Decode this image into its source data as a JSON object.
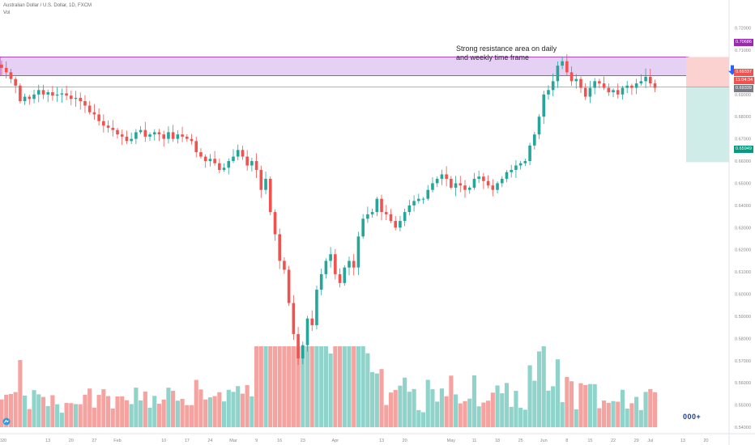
{
  "header": {
    "symbol_line": "Australian Dollar / U.S. Dollar, 1D, FXCM",
    "indicator_line": "Vol"
  },
  "annotation": {
    "line1": "Strong resistance area on daily",
    "line2": "and weekly time frame"
  },
  "price_tags": {
    "top": "0.70686",
    "current": "0.69337",
    "countdown": "11:04:34",
    "entry": "0.69339",
    "target": "0.65949"
  },
  "colors": {
    "up": "#26a69a",
    "down": "#ef5350",
    "up_volume": "#8fd3cb",
    "down_volume": "#f5a3a0",
    "resistance_zone": "#e1c9f2",
    "risk_zone": "#fbd2d0",
    "reward_zone": "#cfece9",
    "target_tag": "#089981",
    "arrow": "#2962ff"
  },
  "icons": {
    "logo": "tradingview-logo-icon",
    "arrow": "arrow-down-icon",
    "controls": "chart-controls-icon"
  },
  "controls_label": "000+",
  "chart_data": {
    "type": "candlestick",
    "title": "Australian Dollar / U.S. Dollar, 1D, FXCM",
    "y_axis": {
      "range": [
        0.5371,
        0.7326
      ],
      "ticks": [
        "0.72000",
        "0.71000",
        "0.70000",
        "0.69000",
        "0.68000",
        "0.67000",
        "0.66000",
        "0.65000",
        "0.64000",
        "0.63000",
        "0.62000",
        "0.61000",
        "0.60000",
        "0.59000",
        "0.58000",
        "0.57000",
        "0.56000",
        "0.55000",
        "0.54000"
      ],
      "position": "right"
    },
    "x_axis": {
      "ticks": [
        {
          "label": "2020",
          "index": 0
        },
        {
          "label": "13",
          "index": 10
        },
        {
          "label": "20",
          "index": 15
        },
        {
          "label": "27",
          "index": 20
        },
        {
          "label": "Feb",
          "index": 25
        },
        {
          "label": "10",
          "index": 35
        },
        {
          "label": "17",
          "index": 40
        },
        {
          "label": "24",
          "index": 45
        },
        {
          "label": "Mar",
          "index": 50
        },
        {
          "label": "9",
          "index": 55
        },
        {
          "label": "16",
          "index": 60
        },
        {
          "label": "23",
          "index": 65
        },
        {
          "label": "Apr",
          "index": 72
        },
        {
          "label": "13",
          "index": 82
        },
        {
          "label": "20",
          "index": 87
        },
        {
          "label": "May",
          "index": 97
        },
        {
          "label": "11",
          "index": 102
        },
        {
          "label": "18",
          "index": 107
        },
        {
          "label": "25",
          "index": 112
        },
        {
          "label": "Jun",
          "index": 117
        },
        {
          "label": "8",
          "index": 122
        },
        {
          "label": "15",
          "index": 127
        },
        {
          "label": "22",
          "index": 132
        },
        {
          "label": "29",
          "index": 137
        },
        {
          "label": "Jul",
          "index": 140
        },
        {
          "label": "13",
          "index": 147
        },
        {
          "label": "20",
          "index": 152
        }
      ],
      "bar_count": 160
    },
    "resistance_zone": {
      "from": 0.6985,
      "to": 0.7069,
      "label": "Strong resistance area on daily and weekly time frame"
    },
    "horizontal_line": 0.6934,
    "position_tool": {
      "entry": 0.6934,
      "stop": 0.7069,
      "target": 0.6595
    },
    "closes": [
      0.702,
      0.7,
      0.697,
      0.694,
      0.687,
      0.689,
      0.688,
      0.69,
      0.692,
      0.69,
      0.691,
      0.6895,
      0.69,
      0.6905,
      0.6895,
      0.688,
      0.6885,
      0.687,
      0.685,
      0.682,
      0.681,
      0.678,
      0.676,
      0.675,
      0.674,
      0.672,
      0.671,
      0.669,
      0.67,
      0.673,
      0.674,
      0.671,
      0.672,
      0.673,
      0.672,
      0.67,
      0.673,
      0.67,
      0.672,
      0.671,
      0.67,
      0.669,
      0.664,
      0.662,
      0.66,
      0.661,
      0.659,
      0.656,
      0.657,
      0.66,
      0.662,
      0.665,
      0.662,
      0.658,
      0.66,
      0.656,
      0.647,
      0.652,
      0.637,
      0.627,
      0.615,
      0.611,
      0.596,
      0.582,
      0.571,
      0.577,
      0.589,
      0.586,
      0.602,
      0.609,
      0.615,
      0.618,
      0.609,
      0.605,
      0.612,
      0.615,
      0.612,
      0.626,
      0.634,
      0.636,
      0.637,
      0.643,
      0.637,
      0.636,
      0.633,
      0.63,
      0.633,
      0.637,
      0.64,
      0.642,
      0.643,
      0.643,
      0.647,
      0.65,
      0.652,
      0.654,
      0.652,
      0.648,
      0.65,
      0.649,
      0.647,
      0.648,
      0.652,
      0.653,
      0.651,
      0.649,
      0.647,
      0.65,
      0.652,
      0.655,
      0.656,
      0.658,
      0.659,
      0.66,
      0.667,
      0.672,
      0.68,
      0.69,
      0.692,
      0.696,
      0.703,
      0.705,
      0.7,
      0.696,
      0.697,
      0.693,
      0.689,
      0.693,
      0.696,
      0.695,
      0.693,
      0.691,
      0.692,
      0.69,
      0.693,
      0.694,
      0.693,
      0.695,
      0.696,
      0.698,
      0.695,
      0.693
    ]
  }
}
